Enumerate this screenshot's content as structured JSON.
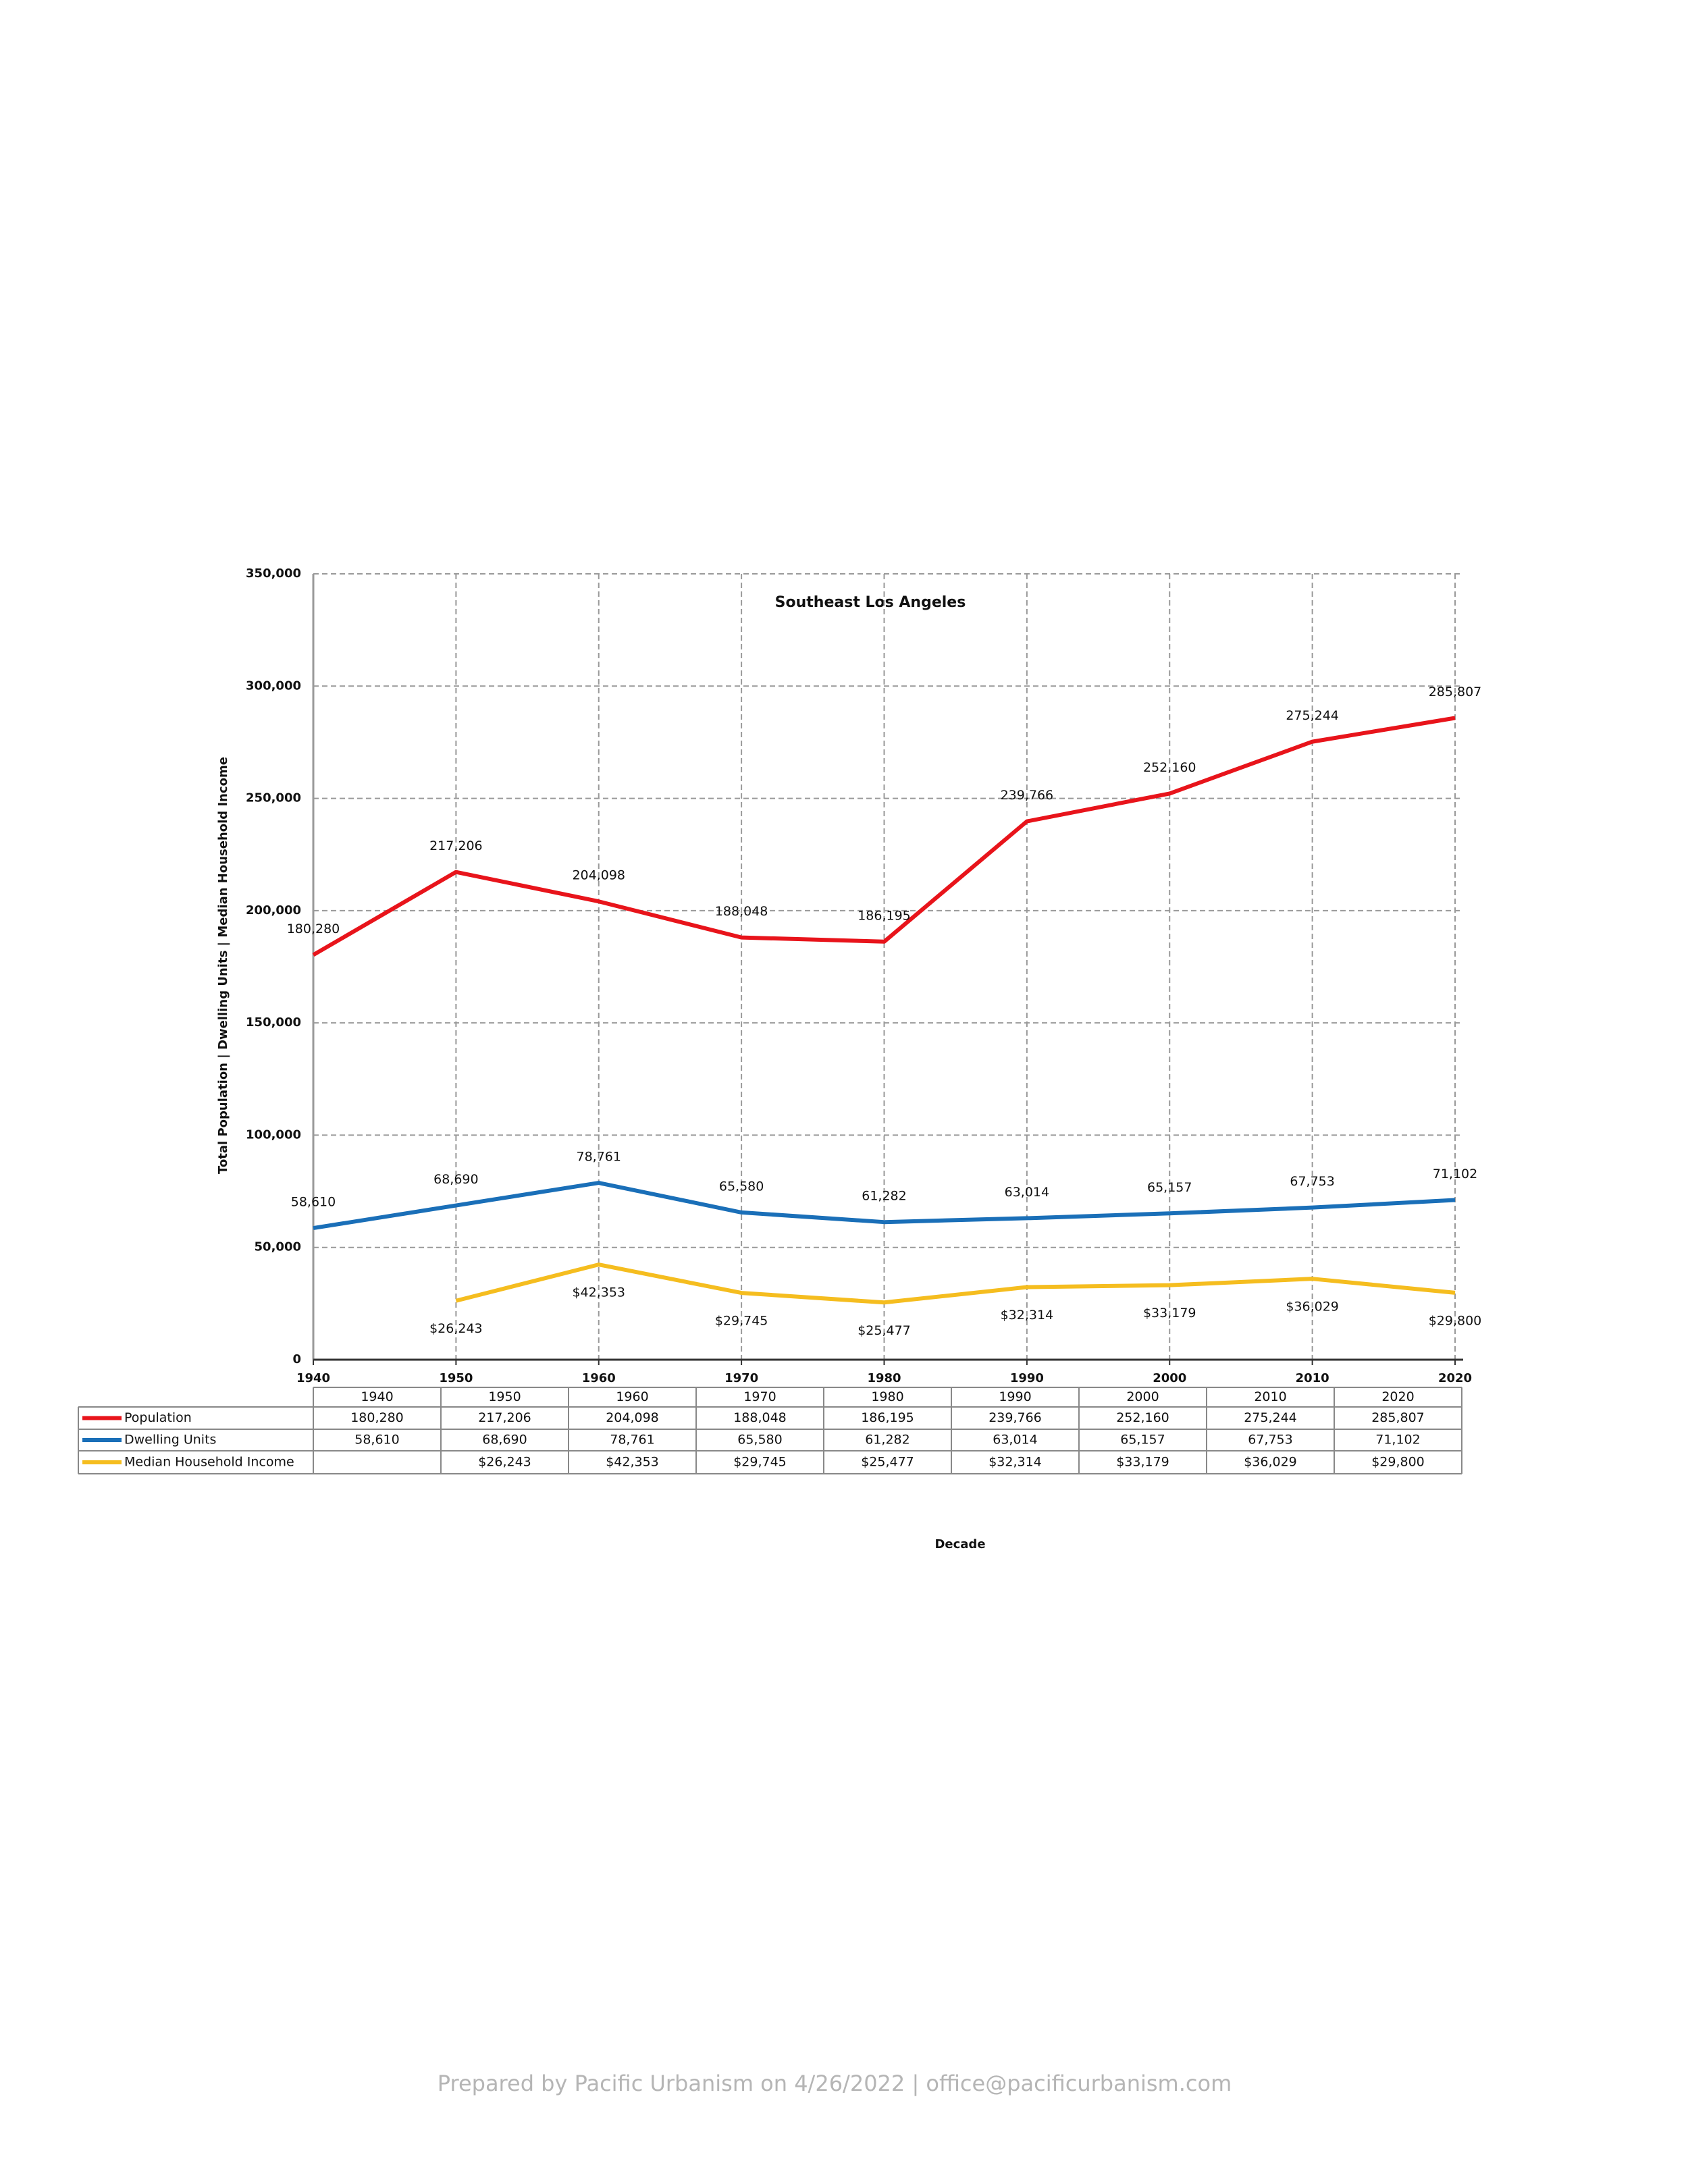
{
  "chart_data": {
    "type": "line",
    "title": "Southeast Los Angeles",
    "x_label": "Decade",
    "y_label": "Total Population | Dwelling Units | Median Household Income",
    "x": [
      1940,
      1950,
      1960,
      1970,
      1980,
      1990,
      2000,
      2010,
      2020
    ],
    "xlim": [
      1940,
      2020
    ],
    "xticks": [
      1940,
      1950,
      1960,
      1970,
      1980,
      1990,
      2000,
      2010,
      2020
    ],
    "ylim": [
      0,
      350000
    ],
    "yticks": [
      0,
      {
        "value": 50000,
        "label": "50,000"
      },
      {
        "value": 100000,
        "label": "100,000"
      },
      {
        "value": 150000,
        "label": "150,000"
      },
      {
        "value": 200000,
        "label": "200,000"
      },
      {
        "value": 250000,
        "label": "250,000"
      },
      {
        "value": 300000,
        "label": "300,000"
      },
      {
        "value": 350000,
        "label": "350,000"
      }
    ],
    "grid": true,
    "data_table": true,
    "series": [
      {
        "name": "Population",
        "color": "#e8141b",
        "values": [
          180280,
          217206,
          204098,
          188048,
          186195,
          239766,
          252160,
          275244,
          285807
        ],
        "value_labels": [
          "180,280",
          "217,206",
          "204,098",
          "188,048",
          "186,195",
          "239,766",
          "252,160",
          "275,244",
          "285,807"
        ]
      },
      {
        "name": "Dwelling Units",
        "color": "#1a6fb8",
        "values": [
          58610,
          68690,
          78761,
          65580,
          61282,
          63014,
          65157,
          67753,
          71102
        ],
        "value_labels": [
          "58,610",
          "68,690",
          "78,761",
          "65,580",
          "61,282",
          "63,014",
          "65,157",
          "67,753",
          "71,102"
        ]
      },
      {
        "name": "Median Household Income",
        "color": "#f5bd1f",
        "values": [
          null,
          26243,
          42353,
          29745,
          25477,
          32314,
          33179,
          36029,
          29800
        ],
        "value_labels": [
          null,
          "$26,243",
          "$42,353",
          "$29,745",
          "$25,477",
          "$32,314",
          "$33,179",
          "$36,029",
          "$29,800"
        ]
      }
    ]
  },
  "footer": "Prepared by Pacific Urbanism on 4/26/2022 | office@pacificurbanism.com"
}
